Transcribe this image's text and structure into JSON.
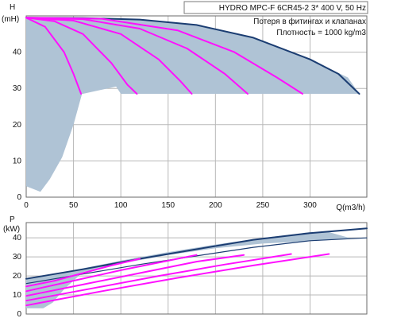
{
  "chart_data": [
    {
      "type": "line",
      "title": "HYDRO MPC-F 6CR45-2   3* 400 V, 50 Hz",
      "annotations": [
        "Потеря в фитингах и клапанах",
        "Плотность = 1000 kg/m3"
      ],
      "ylabel": "H",
      "yunit": "(mH)",
      "xlabel": "Q(m3/h)",
      "xlim": [
        0,
        360
      ],
      "ylim": [
        0,
        50
      ],
      "xticks": [
        0,
        50,
        100,
        150,
        200,
        250,
        300
      ],
      "yticks": [
        0,
        10,
        20,
        30,
        40
      ],
      "grid": true,
      "colors": {
        "operating_range": "#afc3d5",
        "envelope_curve": "#1b3d72",
        "pump_curves": "#ff10ff",
        "grid": "#b8b8b8"
      },
      "operating_range": [
        {
          "x": 0,
          "y": 49.5
        },
        {
          "x": 60,
          "y": 49.4
        },
        {
          "x": 120,
          "y": 49
        },
        {
          "x": 180,
          "y": 47.5
        },
        {
          "x": 240,
          "y": 44
        },
        {
          "x": 300,
          "y": 38
        },
        {
          "x": 340,
          "y": 33
        },
        {
          "x": 352,
          "y": 28.5
        },
        {
          "x": 100,
          "y": 28.5
        },
        {
          "x": 95,
          "y": 30.5
        },
        {
          "x": 60,
          "y": 28.5
        },
        {
          "x": 59,
          "y": 28.5
        },
        {
          "x": 50,
          "y": 20
        },
        {
          "x": 38,
          "y": 11
        },
        {
          "x": 25,
          "y": 5
        },
        {
          "x": 15,
          "y": 1.5
        },
        {
          "x": 0,
          "y": 3
        }
      ],
      "envelope": [
        {
          "x": 0,
          "y": 49.5
        },
        {
          "x": 60,
          "y": 49.4
        },
        {
          "x": 120,
          "y": 49
        },
        {
          "x": 180,
          "y": 47.5
        },
        {
          "x": 240,
          "y": 44
        },
        {
          "x": 300,
          "y": 38
        },
        {
          "x": 330,
          "y": 34
        },
        {
          "x": 352,
          "y": 28.5
        }
      ],
      "series": [
        [
          {
            "x": 0,
            "y": 49.5
          },
          {
            "x": 20,
            "y": 47
          },
          {
            "x": 40,
            "y": 40
          },
          {
            "x": 50,
            "y": 34
          },
          {
            "x": 58,
            "y": 28.5
          }
        ],
        [
          {
            "x": 0,
            "y": 49.5
          },
          {
            "x": 30,
            "y": 48.5
          },
          {
            "x": 60,
            "y": 45
          },
          {
            "x": 90,
            "y": 37
          },
          {
            "x": 107,
            "y": 31
          },
          {
            "x": 117,
            "y": 28.5
          }
        ],
        [
          {
            "x": 0,
            "y": 49.5
          },
          {
            "x": 50,
            "y": 48.7
          },
          {
            "x": 100,
            "y": 45
          },
          {
            "x": 140,
            "y": 38
          },
          {
            "x": 163,
            "y": 32
          },
          {
            "x": 175,
            "y": 28.5
          }
        ],
        [
          {
            "x": 0,
            "y": 49.5
          },
          {
            "x": 60,
            "y": 49.1
          },
          {
            "x": 120,
            "y": 46.5
          },
          {
            "x": 170,
            "y": 41
          },
          {
            "x": 210,
            "y": 34
          },
          {
            "x": 234,
            "y": 28.5
          }
        ],
        [
          {
            "x": 0,
            "y": 49.5
          },
          {
            "x": 80,
            "y": 49.2
          },
          {
            "x": 160,
            "y": 46
          },
          {
            "x": 220,
            "y": 40
          },
          {
            "x": 265,
            "y": 33
          },
          {
            "x": 292,
            "y": 28.5
          }
        ]
      ]
    },
    {
      "type": "line",
      "ylabel": "P",
      "yunit": "(kW)",
      "xlim": [
        0,
        360
      ],
      "ylim": [
        0,
        48
      ],
      "xticks": [
        0,
        50,
        100,
        150,
        200,
        250,
        300
      ],
      "yticks": [
        0,
        10,
        20,
        30,
        40
      ],
      "grid": true,
      "colors": {
        "operating_range": "#afc3d5",
        "upper_curve": "#1b3d72",
        "pump_curves": "#ff10ff",
        "grid": "#b8b8b8"
      },
      "operating_range": [
        {
          "x": 0,
          "y": 18.5
        },
        {
          "x": 50,
          "y": 23
        },
        {
          "x": 100,
          "y": 28
        },
        {
          "x": 150,
          "y": 32.5
        },
        {
          "x": 200,
          "y": 36.5
        },
        {
          "x": 250,
          "y": 40
        },
        {
          "x": 300,
          "y": 43
        },
        {
          "x": 320,
          "y": 43
        },
        {
          "x": 345,
          "y": 39.5
        },
        {
          "x": 250,
          "y": 37
        },
        {
          "x": 200,
          "y": 34.5
        },
        {
          "x": 150,
          "y": 31
        },
        {
          "x": 100,
          "y": 26.5
        },
        {
          "x": 60,
          "y": 22
        },
        {
          "x": 40,
          "y": 13
        },
        {
          "x": 28,
          "y": 6
        },
        {
          "x": 18,
          "y": 3
        },
        {
          "x": 0,
          "y": 3
        }
      ],
      "envelope": [
        {
          "x": 0,
          "y": 18.5
        },
        {
          "x": 60,
          "y": 23.5
        },
        {
          "x": 120,
          "y": 29
        },
        {
          "x": 180,
          "y": 34
        },
        {
          "x": 240,
          "y": 39
        },
        {
          "x": 300,
          "y": 42.5
        },
        {
          "x": 360,
          "y": 45
        }
      ],
      "envelope_lower": [
        {
          "x": 0,
          "y": 16
        },
        {
          "x": 60,
          "y": 21
        },
        {
          "x": 120,
          "y": 26
        },
        {
          "x": 180,
          "y": 30.5
        },
        {
          "x": 240,
          "y": 35
        },
        {
          "x": 300,
          "y": 38.5
        },
        {
          "x": 360,
          "y": 40
        }
      ],
      "series": [
        [
          {
            "x": 0,
            "y": 14.5
          },
          {
            "x": 30,
            "y": 17.5
          },
          {
            "x": 60,
            "y": 21.5
          },
          {
            "x": 90,
            "y": 25.5
          },
          {
            "x": 120,
            "y": 29
          }
        ],
        [
          {
            "x": 0,
            "y": 12
          },
          {
            "x": 50,
            "y": 17.5
          },
          {
            "x": 100,
            "y": 23
          },
          {
            "x": 150,
            "y": 28
          },
          {
            "x": 180,
            "y": 31
          }
        ],
        [
          {
            "x": 0,
            "y": 9.5
          },
          {
            "x": 60,
            "y": 15.5
          },
          {
            "x": 120,
            "y": 21.5
          },
          {
            "x": 180,
            "y": 27.5
          },
          {
            "x": 230,
            "y": 31
          }
        ],
        [
          {
            "x": 0,
            "y": 7
          },
          {
            "x": 70,
            "y": 13.5
          },
          {
            "x": 140,
            "y": 20
          },
          {
            "x": 210,
            "y": 26
          },
          {
            "x": 280,
            "y": 31.5
          }
        ],
        [
          {
            "x": 0,
            "y": 4.5
          },
          {
            "x": 80,
            "y": 12
          },
          {
            "x": 160,
            "y": 19
          },
          {
            "x": 240,
            "y": 25.5
          },
          {
            "x": 320,
            "y": 31.5
          }
        ]
      ]
    }
  ]
}
